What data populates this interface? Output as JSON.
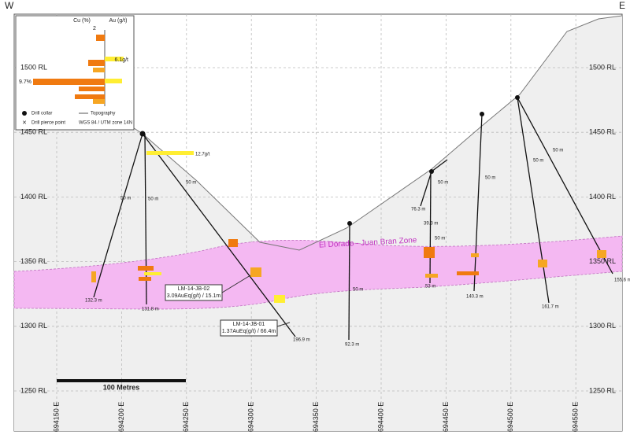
{
  "compass": {
    "west": "W",
    "east": "E"
  },
  "legend": {
    "cu_label": "Cu (%)",
    "au_label": "Au (g/t)",
    "scale_tick": "2",
    "au_max": "6.1g/t",
    "cu_max": "9.7%",
    "items": [
      "Drill collar",
      "Topography",
      "Drill pierce point",
      "WGS 84 / UTM zone 14N"
    ]
  },
  "eastings": [
    "694150 E",
    "694200 E",
    "694250 E",
    "694300 E",
    "694350 E",
    "694400 E",
    "694450 E",
    "694500 E",
    "694550 E"
  ],
  "elevations": [
    "1250 RL",
    "1300 RL",
    "1350 RL",
    "1400 RL",
    "1450 RL",
    "1500 RL"
  ],
  "zone_label": "El Dorado - Juan Bran Zone",
  "scale_bar": "100 Metres",
  "assay_label": "12.7g/t",
  "hole_depths": [
    "132.3 m",
    "131.8 m",
    "196.9 m",
    "92.3 m",
    "76.3 m",
    "39.3 m",
    "53 m",
    "140.3 m",
    "161.7 m",
    "155.6 m"
  ],
  "depth_marks": [
    "50 m",
    "50 m",
    "50 m",
    "50 m",
    "50 m",
    "50 m",
    "50 m",
    "50 m",
    "50 m"
  ],
  "callouts": [
    {
      "hole": "LM-14-JB-02",
      "result": "3.09AuEq(g/t) / 15.1m"
    },
    {
      "hole": "LM-14-JB-01",
      "result": "1.37AuEq(g/t) / 66.4m"
    }
  ]
}
